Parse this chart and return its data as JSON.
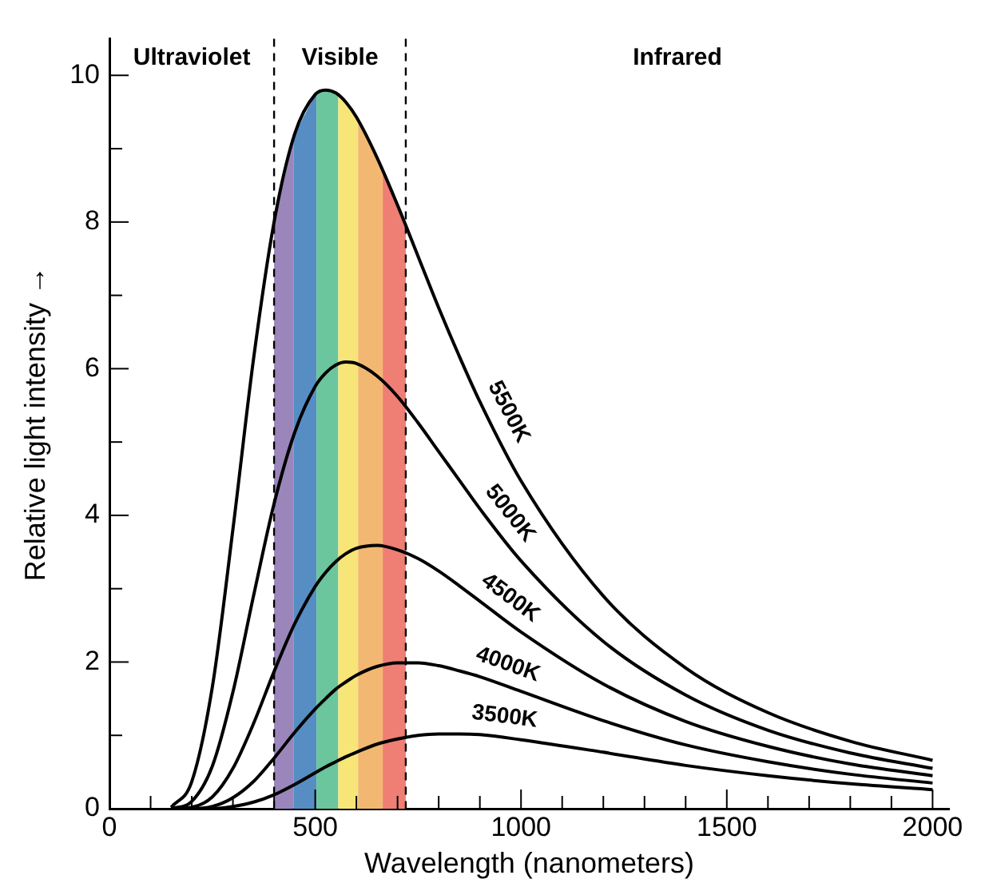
{
  "chart_data": {
    "type": "line",
    "xlabel": "Wavelength (nanometers)",
    "ylabel": "Relative light intensity →",
    "x": [
      150,
      200,
      250,
      300,
      350,
      400,
      450,
      500,
      525,
      550,
      575,
      600,
      650,
      700,
      750,
      800,
      850,
      900,
      1000,
      1200,
      1400,
      1600,
      1800,
      2000
    ],
    "series": [
      {
        "name": "5500K",
        "color": "#000000",
        "values": [
          0.02,
          0.37,
          1.66,
          3.81,
          6.13,
          8.0,
          9.2,
          9.74,
          9.8,
          9.76,
          9.63,
          9.43,
          8.88,
          8.23,
          7.53,
          6.83,
          6.17,
          5.55,
          4.47,
          2.9,
          1.92,
          1.31,
          0.92,
          0.66
        ]
      },
      {
        "name": "5000K",
        "color": "#000000",
        "values": [
          0,
          0.1,
          0.58,
          1.59,
          2.9,
          4.16,
          5.13,
          5.76,
          5.94,
          6.05,
          6.09,
          6.07,
          5.9,
          5.62,
          5.26,
          4.87,
          4.48,
          4.09,
          3.38,
          2.28,
          1.55,
          1.07,
          0.76,
          0.55
        ]
      },
      {
        "name": "4500K",
        "color": "#000000",
        "values": [
          0,
          0.02,
          0.16,
          0.55,
          1.16,
          1.87,
          2.52,
          3.03,
          3.22,
          3.37,
          3.48,
          3.55,
          3.59,
          3.53,
          3.41,
          3.24,
          3.04,
          2.83,
          2.41,
          1.7,
          1.19,
          0.85,
          0.61,
          0.45
        ]
      },
      {
        "name": "4000K",
        "color": "#000000",
        "values": [
          0,
          0,
          0.03,
          0.15,
          0.37,
          0.69,
          1.04,
          1.36,
          1.5,
          1.63,
          1.73,
          1.82,
          1.94,
          1.99,
          1.99,
          1.95,
          1.88,
          1.8,
          1.6,
          1.2,
          0.87,
          0.64,
          0.47,
          0.35
        ]
      },
      {
        "name": "3500K",
        "color": "#000000",
        "values": [
          0,
          0,
          0,
          0.03,
          0.09,
          0.19,
          0.33,
          0.49,
          0.57,
          0.64,
          0.71,
          0.77,
          0.88,
          0.95,
          1.0,
          1.02,
          1.02,
          1.01,
          0.94,
          0.77,
          0.59,
          0.45,
          0.34,
          0.26
        ]
      }
    ],
    "xlim": [
      0,
      2040
    ],
    "xticks": [
      0,
      {
        "value": 100,
        "label": null
      },
      {
        "value": 200,
        "label": null
      },
      {
        "value": 300,
        "label": null
      },
      {
        "value": 400,
        "label": null
      },
      500,
      {
        "value": 600,
        "label": null
      },
      {
        "value": 700,
        "label": null
      },
      {
        "value": 800,
        "label": null
      },
      {
        "value": 900,
        "label": null
      },
      1000,
      {
        "value": 1100,
        "label": null
      },
      {
        "value": 1200,
        "label": null
      },
      {
        "value": 1300,
        "label": null
      },
      {
        "value": 1400,
        "label": null
      },
      1500,
      {
        "value": 1600,
        "label": null
      },
      {
        "value": 1700,
        "label": null
      },
      {
        "value": 1800,
        "label": null
      },
      {
        "value": 1900,
        "label": null
      },
      2000
    ],
    "ylim": [
      0,
      10.5
    ],
    "yticks": [
      0,
      {
        "value": 1,
        "label": null
      },
      2,
      {
        "value": 3,
        "label": null
      },
      4,
      {
        "value": 5,
        "label": null
      },
      6,
      {
        "value": 7,
        "label": null
      },
      8,
      {
        "value": 9,
        "label": null
      },
      10
    ],
    "bands": [
      {
        "axis": "x",
        "from": 400,
        "to": 447,
        "color": "#9b86bb"
      },
      {
        "axis": "x",
        "from": 447,
        "to": 503,
        "color": "#568ec4"
      },
      {
        "axis": "x",
        "from": 503,
        "to": 556,
        "color": "#6bc59d"
      },
      {
        "axis": "x",
        "from": 556,
        "to": 604,
        "color": "#f7e677"
      },
      {
        "axis": "x",
        "from": 604,
        "to": 664,
        "color": "#f2b872"
      },
      {
        "axis": "x",
        "from": 664,
        "to": 720,
        "color": "#ef7e74"
      }
    ],
    "ref_lines": [
      {
        "axis": "x",
        "value": 400,
        "color": "#000000",
        "line_style": "dashed"
      },
      {
        "axis": "x",
        "value": 720,
        "color": "#000000",
        "line_style": "dashed"
      }
    ],
    "annotations": [
      "Ultraviolet",
      "Visible",
      "Infrared"
    ],
    "grid": false,
    "legend": false,
    "marker": "none",
    "line_style": "solid"
  }
}
